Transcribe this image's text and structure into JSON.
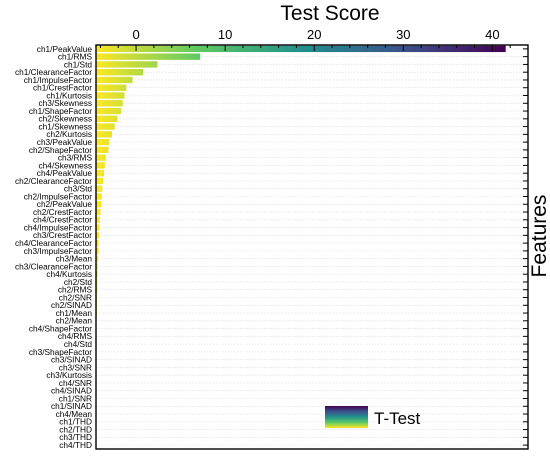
{
  "chart_data": {
    "type": "bar",
    "orientation": "horizontal",
    "xlabel": "Test Score",
    "ylabel": "Features",
    "x_axis_position": "top",
    "y_axis_position": "right",
    "xlim": [
      -4.5,
      44
    ],
    "xticks": [
      0,
      10,
      20,
      30,
      40
    ],
    "grid": "dotted horizontal",
    "legend": {
      "position": "bottom-right",
      "entries": [
        "T-Test"
      ]
    },
    "colormap": [
      "#440154",
      "#3b528b",
      "#21918c",
      "#5ec962",
      "#fde725"
    ],
    "categories": [
      "ch1/PeakValue",
      "ch1/RMS",
      "ch1/Std",
      "ch1/ClearanceFactor",
      "ch1/ImpulseFactor",
      "ch1/CrestFactor",
      "ch1/Kurtosis",
      "ch3/Skewness",
      "ch1/ShapeFactor",
      "ch2/Skewness",
      "ch1/Skewness",
      "ch2/Kurtosis",
      "ch3/PeakValue",
      "ch2/ShapeFactor",
      "ch3/RMS",
      "ch4/Skewness",
      "ch4/PeakValue",
      "ch2/ClearanceFactor",
      "ch3/Std",
      "ch2/ImpulseFactor",
      "ch2/PeakValue",
      "ch2/CrestFactor",
      "ch4/CrestFactor",
      "ch4/ImpulseFactor",
      "ch3/CrestFactor",
      "ch4/ClearanceFactor",
      "ch3/ImpulseFactor",
      "ch3/Mean",
      "ch3/ClearanceFactor",
      "ch4/Kurtosis",
      "ch2/Std",
      "ch2/RMS",
      "ch2/SNR",
      "ch2/SINAD",
      "ch1/Mean",
      "ch2/Mean",
      "ch4/ShapeFactor",
      "ch4/RMS",
      "ch4/Std",
      "ch3/ShapeFactor",
      "ch3/SINAD",
      "ch3/SNR",
      "ch3/Kurtosis",
      "ch4/SNR",
      "ch4/SINAD",
      "ch1/SNR",
      "ch1/SINAD",
      "ch4/Mean",
      "ch1/THD",
      "ch2/THD",
      "ch3/THD",
      "ch4/THD"
    ],
    "values": [
      41.5,
      7.2,
      2.4,
      0.8,
      -0.4,
      -1.1,
      -1.3,
      -1.5,
      -1.7,
      -2.1,
      -2.4,
      -2.7,
      -3.0,
      -3.1,
      -3.4,
      -3.5,
      -3.6,
      -3.7,
      -3.8,
      -3.85,
      -3.9,
      -4.0,
      -4.05,
      -4.1,
      -4.15,
      -4.2,
      -4.2,
      -4.25,
      -4.3,
      -4.3,
      -4.35,
      -4.35,
      -4.4,
      -4.4,
      -4.4,
      -4.45,
      -4.45,
      -4.45,
      -4.5,
      -4.5,
      -4.5,
      -4.5,
      -4.5,
      -4.5,
      -4.5,
      -4.5,
      -4.5,
      -4.5,
      -4.5,
      -4.5,
      -4.5,
      -4.5
    ]
  }
}
